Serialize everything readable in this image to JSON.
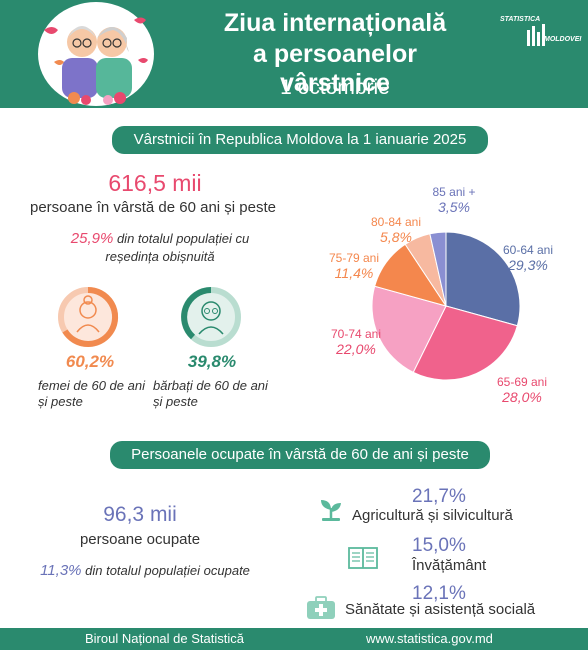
{
  "header": {
    "title_line1": "Ziua internațională",
    "title_line2": "a persoanelor vârstnice",
    "date": "1 octombrie",
    "logo_line1": "STATISTICA",
    "logo_line2": "MOLDOVEI"
  },
  "section1": {
    "heading": "Vârstnicii în Republica Moldova la 1 ianuarie 2025",
    "total_value": "616,5 mii",
    "total_label": "persoane în vârstă de 60 ani și peste",
    "share_value": "25,9%",
    "share_label_line1": "din totalul populației cu",
    "share_label_line2": "reședința obișnuită",
    "women_pct": "60,2%",
    "women_label_line1": "femei de 60 de ani",
    "women_label_line2": "și peste",
    "men_pct": "39,8%",
    "men_label_line1": "bărbați de 60 de ani",
    "men_label_line2": "și peste"
  },
  "chart_data": {
    "type": "pie",
    "title": "",
    "categories": [
      "60-64 ani",
      "65-69 ani",
      "70-74 ani",
      "75-79 ani",
      "80-84 ani",
      "85 ani +"
    ],
    "values": [
      29.3,
      28.0,
      22.0,
      11.4,
      5.8,
      3.5
    ],
    "value_labels": [
      "29,3%",
      "28,0%",
      "22,0%",
      "11,4%",
      "5,8%",
      "3,5%"
    ],
    "colors": [
      "#5a6fa6",
      "#f0628c",
      "#f6a1c3",
      "#f4874d",
      "#f7b9a0",
      "#8a8fd2"
    ],
    "label_colors": [
      "#5a6fa6",
      "#e8496e",
      "#e8496e",
      "#f4874d",
      "#f4874d",
      "#6a73b8"
    ]
  },
  "section2": {
    "heading": "Persoanele ocupate în vârstă de 60 de ani și peste",
    "employed_value": "96,3 mii",
    "employed_label": "persoane ocupate",
    "share_value": "11,3%",
    "share_label": "din totalul populației ocupate",
    "sectors": [
      {
        "pct": "21,7%",
        "name": "Agricultură și silvicultură",
        "icon": "plant-icon"
      },
      {
        "pct": "15,0%",
        "name": "Învățământ",
        "icon": "book-icon"
      },
      {
        "pct": "12,1%",
        "name": "Sănătate și asistență socială",
        "icon": "medical-kit-icon"
      }
    ]
  },
  "footer": {
    "org": "Biroul Național de Statistică",
    "url": "www.statistica.gov.md"
  }
}
